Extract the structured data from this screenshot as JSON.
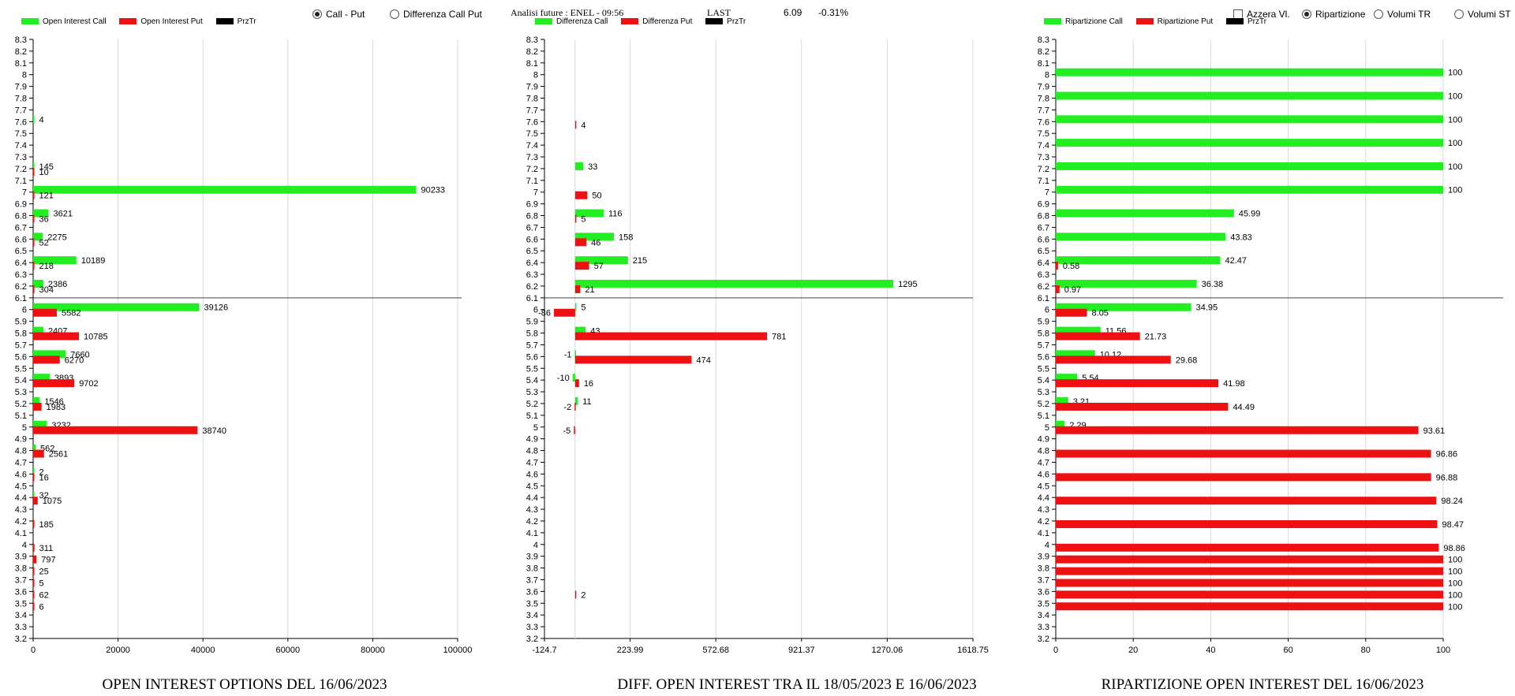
{
  "controls": {
    "radio_call_put": "Call - Put",
    "radio_diff": "Differenza Call Put",
    "analysis": "Analisi future : ENEL - 09:56",
    "last_label": "LAST",
    "last_value": "6.09",
    "last_change": "-0.31%",
    "check_azzera": "Azzera Vl.",
    "radio_ripartizione": "Ripartizione",
    "radio_volumi_tr": "Volumi TR",
    "radio_volumi_st": "Volumi ST"
  },
  "colors": {
    "call": "#22ee22",
    "put": "#ee1111",
    "prztr": "#000000"
  },
  "chart_data": [
    {
      "type": "bar",
      "title": "OPEN INTEREST OPTIONS DEL 16/06/2023",
      "legend": [
        "Open Interest Call",
        "Open Interest Put",
        "PrzTr"
      ],
      "x_ticks": [
        "0",
        "20000",
        "40000",
        "60000",
        "80000",
        "100000"
      ],
      "xlim": [
        0,
        100000
      ],
      "ylim": [
        3.2,
        8.3
      ],
      "price_line": 6.1,
      "call": [
        [
          7.6,
          4
        ],
        [
          7.2,
          145
        ],
        [
          7,
          90233
        ],
        [
          6.8,
          3621
        ],
        [
          6.6,
          2275
        ],
        [
          6.4,
          10189
        ],
        [
          6.2,
          2386
        ],
        [
          6,
          39126
        ],
        [
          5.8,
          2407
        ],
        [
          5.6,
          7660
        ],
        [
          5.4,
          3893
        ],
        [
          5.2,
          1546
        ],
        [
          5,
          3232
        ],
        [
          4.8,
          562
        ],
        [
          4.6,
          2
        ],
        [
          4.4,
          32
        ]
      ],
      "put": [
        [
          7.2,
          10
        ],
        [
          7,
          121
        ],
        [
          6.8,
          36
        ],
        [
          6.6,
          52
        ],
        [
          6.4,
          218
        ],
        [
          6.2,
          304
        ],
        [
          6,
          5582
        ],
        [
          5.8,
          10785
        ],
        [
          5.6,
          6270
        ],
        [
          5.4,
          9702
        ],
        [
          5.2,
          1983
        ],
        [
          5,
          38740
        ],
        [
          4.8,
          2561
        ],
        [
          4.6,
          16
        ],
        [
          4.4,
          1075
        ],
        [
          4.2,
          185
        ],
        [
          4,
          311
        ],
        [
          3.9,
          797
        ],
        [
          3.8,
          25
        ],
        [
          3.7,
          5
        ],
        [
          3.6,
          62
        ],
        [
          3.5,
          6
        ]
      ]
    },
    {
      "type": "bar",
      "title": "DIFF. OPEN INTEREST TRA IL 18/05/2023 E 16/06/2023",
      "legend": [
        "Differenza Call",
        "Differenza Put",
        "PrzTr"
      ],
      "x_ticks": [
        "-124.7",
        "223.99",
        "572.68",
        "921.37",
        "1270.06",
        "1618.75"
      ],
      "xlim": [
        -124.7,
        1618.75
      ],
      "ylim": [
        3.2,
        8.3
      ],
      "price_line": 6.1,
      "call": [
        [
          7.2,
          33
        ],
        [
          6.8,
          116
        ],
        [
          6.6,
          158
        ],
        [
          6.4,
          215
        ],
        [
          6.2,
          1295
        ],
        [
          6,
          5
        ],
        [
          5.8,
          43
        ],
        [
          5.6,
          -1
        ],
        [
          5.4,
          -10
        ],
        [
          5.2,
          11
        ]
      ],
      "put": [
        [
          7.6,
          4
        ],
        [
          7,
          50
        ],
        [
          6.8,
          5
        ],
        [
          6.6,
          46
        ],
        [
          6.4,
          57
        ],
        [
          6.2,
          21
        ],
        [
          6,
          -86
        ],
        [
          5.8,
          781
        ],
        [
          5.6,
          474
        ],
        [
          5.4,
          16
        ],
        [
          5.2,
          -2
        ],
        [
          5,
          -5
        ],
        [
          3.6,
          2
        ]
      ]
    },
    {
      "type": "bar",
      "title": "RIPARTIZIONE OPEN INTEREST DEL 16/06/2023",
      "legend": [
        "Ripartizione Call",
        "Ripartizione Put",
        "PrzTr"
      ],
      "x_ticks": [
        "0",
        "20",
        "40",
        "60",
        "80",
        "100"
      ],
      "xlim": [
        0,
        100
      ],
      "ylim": [
        3.2,
        8.3
      ],
      "price_line": 6.1,
      "call": [
        [
          8,
          100
        ],
        [
          7.8,
          100
        ],
        [
          7.6,
          100
        ],
        [
          7.4,
          100
        ],
        [
          7.2,
          100
        ],
        [
          7,
          100
        ],
        [
          6.8,
          45.99
        ],
        [
          6.6,
          43.83
        ],
        [
          6.4,
          42.47
        ],
        [
          6.2,
          36.38
        ],
        [
          6,
          34.95
        ],
        [
          5.8,
          11.56
        ],
        [
          5.6,
          10.12
        ],
        [
          5.4,
          5.54
        ],
        [
          5.2,
          3.21
        ],
        [
          5,
          2.29
        ]
      ],
      "put": [
        [
          6.4,
          0.58
        ],
        [
          6.2,
          0.97
        ],
        [
          6,
          8.05
        ],
        [
          5.8,
          21.73
        ],
        [
          5.6,
          29.68
        ],
        [
          5.4,
          41.98
        ],
        [
          5.2,
          44.49
        ],
        [
          5,
          93.61
        ],
        [
          4.8,
          96.86
        ],
        [
          4.6,
          96.88
        ],
        [
          4.4,
          98.24
        ],
        [
          4.2,
          98.47
        ],
        [
          4,
          98.86
        ],
        [
          3.9,
          100
        ],
        [
          3.8,
          100
        ],
        [
          3.7,
          100
        ],
        [
          3.6,
          100
        ],
        [
          3.5,
          100
        ]
      ]
    }
  ]
}
